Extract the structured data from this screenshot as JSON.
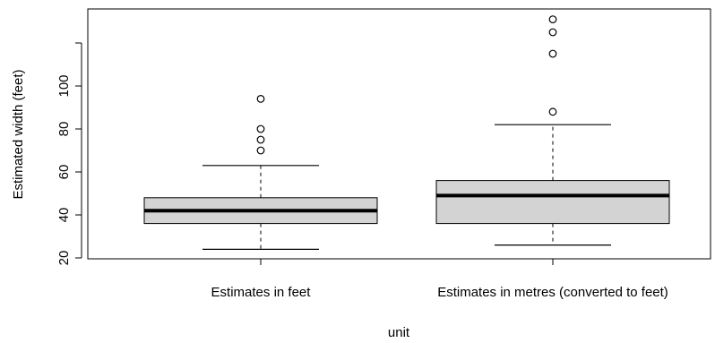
{
  "chart_data": {
    "type": "boxplot",
    "xlabel": "unit",
    "ylabel": "Estimated width (feet)",
    "ylim": [
      20,
      135
    ],
    "yticks": [
      20,
      40,
      60,
      80,
      100
    ],
    "grid": false,
    "box_fill": "#d3d3d3",
    "groups": [
      {
        "label": "Estimates in feet",
        "whisker_low": 24,
        "q1": 36,
        "median": 42,
        "q3": 48,
        "whisker_high": 63,
        "outliers": [
          70,
          75,
          80,
          94
        ]
      },
      {
        "label": "Estimates in metres (converted to feet)",
        "whisker_low": 26,
        "q1": 36,
        "median": 49,
        "q3": 56,
        "whisker_high": 82,
        "outliers": [
          88,
          115,
          125,
          131
        ]
      }
    ]
  }
}
